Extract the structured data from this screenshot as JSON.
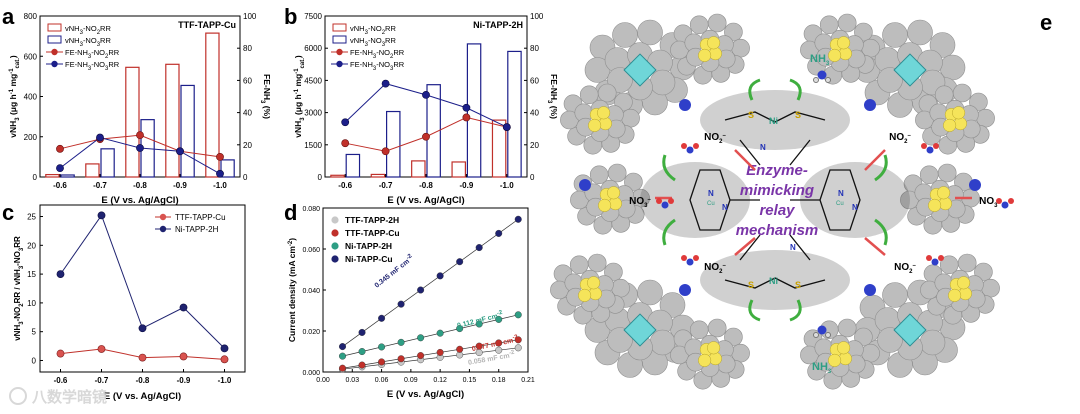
{
  "colors": {
    "red": "#c0302a",
    "blue": "#1c1f8a",
    "red_fill": "#f2b0ad",
    "navy": "#1f2370",
    "gray_sphere": "#bdbdbd",
    "teal": "#2e9e84",
    "green_arrow": "#3fae3f",
    "purple_text": "#7a35a8"
  },
  "watermark": "八数学暗镜",
  "chart_data": [
    {
      "panel": "a",
      "type": "bar+line",
      "title": "TTF-TAPP-Cu",
      "xlabel": "E (V vs. Ag/AgCl)",
      "ylabel_parts": [
        "vNH",
        "3",
        " (μg h",
        "-1",
        " mg",
        "-1",
        "cat.",
        ")"
      ],
      "y2label": "FE-NH3 (%)",
      "categories": [
        "-0.6",
        "-0.7",
        "-0.8",
        "-0.9",
        "-1.0"
      ],
      "ylim": [
        0,
        800
      ],
      "yticks": [
        "0",
        "200",
        "400",
        "600",
        "800"
      ],
      "y2lim": [
        0,
        100
      ],
      "y2ticks": [
        "0",
        "20",
        "40",
        "60",
        "80",
        "100"
      ],
      "legend": [
        "vNH3-NO2RR",
        "vNH3-NO3RR",
        "FE-NH3-NO2RR",
        "FE-NH3-NO3RR"
      ],
      "bars_no2": [
        12,
        65,
        545,
        560,
        715
      ],
      "bars_no3": [
        10,
        140,
        285,
        455,
        85
      ],
      "fe_no2": [
        17.5,
        23.5,
        26,
        16,
        12.5
      ],
      "fe_no3": [
        5.5,
        24.5,
        18,
        16,
        2
      ]
    },
    {
      "panel": "b",
      "type": "bar+line",
      "title": "Ni-TAPP-2H",
      "xlabel": "E (V vs. Ag/AgCl)",
      "ylabel_parts": [
        "vNH",
        "3",
        " (μg h",
        "-1",
        " mg",
        "-1",
        "cat.",
        ")"
      ],
      "y2label": "FE-NH3 (%)",
      "categories": [
        "-0.6",
        "-0.7",
        "-0.8",
        "-0.9",
        "-1.0"
      ],
      "ylim": [
        0,
        7500
      ],
      "yticks": [
        "0",
        "1500",
        "3000",
        "4500",
        "6000",
        "7500"
      ],
      "y2lim": [
        0,
        100
      ],
      "y2ticks": [
        "0",
        "20",
        "40",
        "60",
        "80",
        "100"
      ],
      "legend": [
        "vNH3-NO2RR",
        "vNH3-NO3RR",
        "FE-NH3-NO2RR",
        "FE-NH3-NO3RR"
      ],
      "bars_no2": [
        80,
        120,
        750,
        700,
        2650
      ],
      "bars_no3": [
        1050,
        3050,
        4300,
        6200,
        5850
      ],
      "fe_no2": [
        21,
        16,
        25,
        37,
        31
      ],
      "fe_no3": [
        34,
        58,
        51,
        43,
        31
      ]
    },
    {
      "panel": "c",
      "type": "line",
      "xlabel": "E (V vs. Ag/AgCl)",
      "ylabel_parts": [
        "vNH",
        "3",
        "-NO",
        "2",
        "RR / vNH",
        "3",
        "-NO",
        "3",
        "RR"
      ],
      "categories": [
        "-0.6",
        "-0.7",
        "-0.8",
        "-0.9",
        "-1.0"
      ],
      "ylim": [
        -2,
        27
      ],
      "yticks": [
        0,
        5,
        10,
        15,
        20,
        25
      ],
      "series": [
        {
          "name": "TTF-TAPP-Cu",
          "values": [
            1.2,
            2.0,
            0.5,
            0.7,
            0.2
          ]
        },
        {
          "name": "Ni-TAPP-2H",
          "values": [
            15.0,
            25.2,
            5.6,
            9.2,
            2.1
          ]
        }
      ]
    },
    {
      "panel": "d",
      "type": "scatter",
      "xlabel": "E (V vs. Ag/AgCl)",
      "ylabel_parts": [
        "Current density (mA cm",
        "-2",
        ")"
      ],
      "xlim": [
        0.0,
        0.21
      ],
      "xticks": [
        "0.00",
        "0.03",
        "0.06",
        "0.09",
        "0.12",
        "0.15",
        "0.18",
        "0.21"
      ],
      "ylim": [
        0.0,
        0.08
      ],
      "yticks": [
        "0.000",
        "0.020",
        "0.040",
        "0.060",
        "0.080"
      ],
      "x": [
        0.02,
        0.04,
        0.06,
        0.08,
        0.1,
        0.12,
        0.14,
        0.16,
        0.18,
        0.2
      ],
      "series": [
        {
          "name": "TTF-TAPP-2H",
          "slope_label": "0.058 mF cm",
          "slope": 0.058,
          "intercept": 0.0002
        },
        {
          "name": "TTF-TAPP-Cu",
          "slope_label": "0.077 mF cm",
          "slope": 0.077,
          "intercept": 0.0003
        },
        {
          "name": "Ni-TAPP-2H",
          "slope_label": "0.112 mF cm",
          "slope": 0.112,
          "intercept": 0.0055
        },
        {
          "name": "Ni-TAPP-Cu",
          "slope_label": "0.345 mF cm",
          "slope": 0.345,
          "intercept": 0.0055
        }
      ],
      "slope_sup": "-2"
    }
  ],
  "panel_e": {
    "label": "e",
    "center_text": [
      "Enzyme-",
      "mimicking",
      "relay",
      "mechanism"
    ],
    "nh3": [
      "NH",
      "3"
    ],
    "no2": [
      "NO",
      "2",
      "–"
    ],
    "no3": [
      "NO",
      "3",
      "–"
    ],
    "s_atom": "S",
    "ni_atom": "Ni",
    "n_atom": "N",
    "cu_atom": "Cu"
  }
}
